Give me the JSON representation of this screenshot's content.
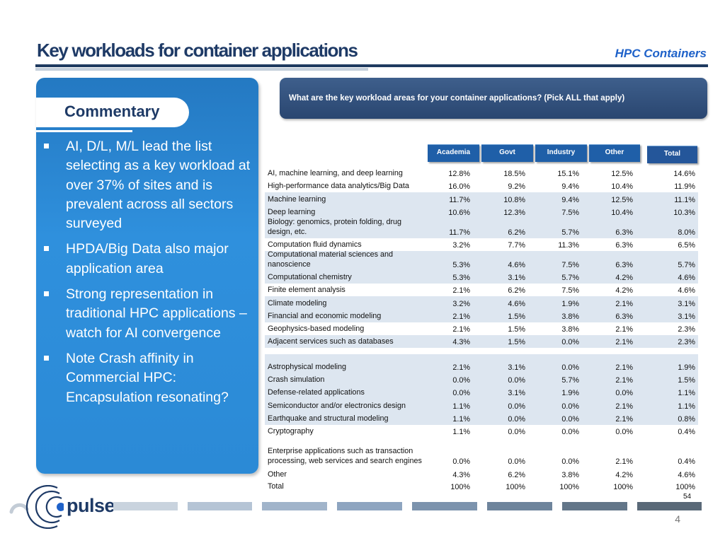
{
  "header": {
    "title": "Key workloads for container applications",
    "subtitle": "HPC Containers"
  },
  "commentary": {
    "heading": "Commentary",
    "bullets": [
      "AI, D/L, M/L lead the list selecting as a key workload at over 37% of sites and is prevalent across all sectors surveyed",
      "HPDA/Big Data also major application area",
      "Strong representation in traditional HPC applications – watch for AI convergence",
      "Note Crash affinity in Commercial HPC: Encapsulation resonating?"
    ]
  },
  "question": "What are the key workload areas for your container applications? (Pick ALL that apply)",
  "table": {
    "columns": [
      "Academia",
      "Govt",
      "Industry",
      "Other",
      "Total"
    ],
    "rows": [
      {
        "label": "AI, machine learning, and deep learning",
        "values": [
          "12.8%",
          "18.5%",
          "15.1%",
          "12.5%",
          "14.6%"
        ]
      },
      {
        "label": "High-performance data analytics/Big Data",
        "values": [
          "16.0%",
          "9.2%",
          "9.4%",
          "10.4%",
          "11.9%"
        ]
      },
      {
        "label": "Machine learning",
        "values": [
          "11.7%",
          "10.8%",
          "9.4%",
          "12.5%",
          "11.1%"
        ]
      },
      {
        "label": "Deep learning",
        "values": [
          "10.6%",
          "12.3%",
          "7.5%",
          "10.4%",
          "10.3%"
        ]
      },
      {
        "label": "Biology: genomics, protein folding, drug design, etc.",
        "values": [
          "11.7%",
          "6.2%",
          "5.7%",
          "6.3%",
          "8.0%"
        ]
      },
      {
        "label": "Computation fluid dynamics",
        "values": [
          "3.2%",
          "7.7%",
          "11.3%",
          "6.3%",
          "6.5%"
        ]
      },
      {
        "label": "Computational material sciences and nanoscience",
        "values": [
          "5.3%",
          "4.6%",
          "7.5%",
          "6.3%",
          "5.7%"
        ]
      },
      {
        "label": "Computational chemistry",
        "values": [
          "5.3%",
          "3.1%",
          "5.7%",
          "4.2%",
          "4.6%"
        ]
      },
      {
        "label": "Finite element analysis",
        "values": [
          "2.1%",
          "6.2%",
          "7.5%",
          "4.2%",
          "4.6%"
        ]
      },
      {
        "label": "Climate modeling",
        "values": [
          "3.2%",
          "4.6%",
          "1.9%",
          "2.1%",
          "3.1%"
        ]
      },
      {
        "label": "Financial and economic modeling",
        "values": [
          "2.1%",
          "1.5%",
          "3.8%",
          "6.3%",
          "3.1%"
        ]
      },
      {
        "label": "Geophysics-based modeling",
        "values": [
          "2.1%",
          "1.5%",
          "3.8%",
          "2.1%",
          "2.3%"
        ]
      },
      {
        "label": "Adjacent services such as databases",
        "values": [
          "4.3%",
          "1.5%",
          "0.0%",
          "2.1%",
          "2.3%"
        ]
      },
      {
        "label": "Astrophysical modeling",
        "values": [
          "2.1%",
          "3.1%",
          "0.0%",
          "2.1%",
          "1.9%"
        ]
      },
      {
        "label": "Crash simulation",
        "values": [
          "0.0%",
          "0.0%",
          "5.7%",
          "2.1%",
          "1.5%"
        ]
      },
      {
        "label": "Defense-related applications",
        "values": [
          "0.0%",
          "3.1%",
          "1.9%",
          "0.0%",
          "1.1%"
        ]
      },
      {
        "label": "Semiconductor and/or electronics design",
        "values": [
          "1.1%",
          "0.0%",
          "0.0%",
          "2.1%",
          "1.1%"
        ]
      },
      {
        "label": "Earthquake and structural modeling",
        "values": [
          "1.1%",
          "0.0%",
          "0.0%",
          "2.1%",
          "0.8%"
        ]
      },
      {
        "label": "Cryptography",
        "values": [
          "1.1%",
          "0.0%",
          "0.0%",
          "0.0%",
          "0.4%"
        ]
      },
      {
        "label": "Enterprise applications such as transaction processing, web services and search engines",
        "values": [
          "0.0%",
          "0.0%",
          "0.0%",
          "2.1%",
          "0.4%"
        ]
      },
      {
        "label": "Other",
        "values": [
          "4.3%",
          "6.2%",
          "3.8%",
          "4.2%",
          "4.6%"
        ]
      },
      {
        "label": "Total",
        "values": [
          "100%",
          "100%",
          "100%",
          "100%",
          "100%"
        ]
      }
    ]
  },
  "source_page": "54",
  "logo_text": "pulse",
  "page_number": "4",
  "colors": {
    "title": "#1e3a66",
    "accent": "#1f62c9",
    "panel": "#2b8ad6",
    "header_cell": "#1f5fa8",
    "row_shade": "#dde6f0"
  }
}
